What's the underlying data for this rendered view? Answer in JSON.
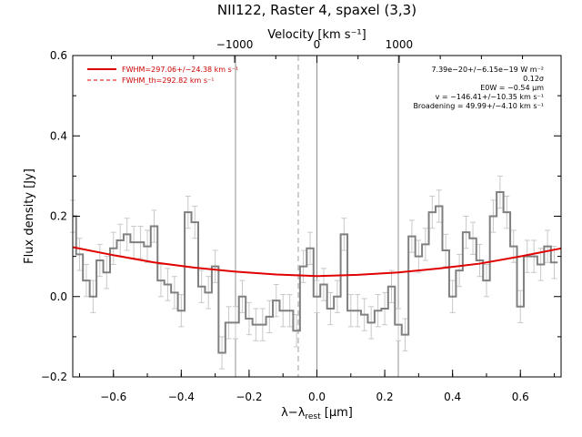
{
  "chart_data": {
    "type": "line",
    "title": "NII122, Raster 4, spaxel (3,3)",
    "xlabel_main": "λ−λ",
    "xlabel_sub": "rest",
    "xlabel_unit": " [μm]",
    "x2label": "Velocity [km s⁻¹]",
    "ylabel": "Flux density [Jy]",
    "xlim": [
      -0.72,
      0.72
    ],
    "ylim": [
      -0.2,
      0.6
    ],
    "xticks": [
      -0.6,
      -0.4,
      -0.2,
      0.0,
      0.2,
      0.4,
      0.6
    ],
    "xtick_labels": [
      "−0.6",
      "−0.4",
      "−0.2",
      "0.0",
      "0.2",
      "0.4",
      "0.6"
    ],
    "yticks": [
      -0.2,
      0.0,
      0.2,
      0.4,
      0.6
    ],
    "ytick_labels": [
      "−0.2",
      "0.0",
      "0.2",
      "0.4",
      "0.6"
    ],
    "vticks": [
      -1000,
      0,
      1000
    ],
    "vtick_labels": [
      "−1000",
      "0",
      "1000"
    ],
    "grid": false,
    "legend_position": "top-left",
    "legend": [
      {
        "label": "FWHM=297.06+/−24.38 km s⁻¹",
        "style": "solid",
        "color": "#e00000"
      },
      {
        "label": "FWHM_th=292.82 km s⁻¹",
        "style": "dashed",
        "color": "#e00000"
      }
    ],
    "annotations": [
      "7.39e−20+/−6.15e−19 W m⁻²",
      "0.12σ",
      "E0W = −0.54 μm",
      "v = −146.41+/−10.35 km s⁻¹",
      "Broadening = 49.99+/−4.10 km s⁻¹"
    ],
    "vertical_lines": {
      "solid": [
        -0.24,
        0.0,
        0.24
      ],
      "dashed": [
        -0.055
      ]
    },
    "fit_curve": {
      "color": "#e00000",
      "x": [
        -0.72,
        -0.6,
        -0.48,
        -0.36,
        -0.24,
        -0.12,
        0.0,
        0.12,
        0.24,
        0.36,
        0.48,
        0.6,
        0.72
      ],
      "y": [
        0.123,
        0.103,
        0.085,
        0.072,
        0.062,
        0.055,
        0.051,
        0.054,
        0.06,
        0.07,
        0.082,
        0.1,
        0.12
      ]
    },
    "series": [
      {
        "color": "#808080",
        "x": [
          -0.72,
          -0.7,
          -0.68,
          -0.66,
          -0.64,
          -0.62,
          -0.6,
          -0.58,
          -0.56,
          -0.54,
          -0.52,
          -0.5,
          -0.48,
          -0.46,
          -0.44,
          -0.42,
          -0.4,
          -0.38,
          -0.36,
          -0.34,
          -0.32,
          -0.3,
          -0.28,
          -0.26,
          -0.24,
          -0.22,
          -0.2,
          -0.18,
          -0.16,
          -0.14,
          -0.12,
          -0.1,
          -0.08,
          -0.06,
          -0.04,
          -0.02,
          0.0,
          0.02,
          0.04,
          0.06,
          0.08,
          0.1,
          0.12,
          0.14,
          0.16,
          0.18,
          0.2,
          0.22,
          0.24,
          0.26,
          0.28,
          0.3,
          0.32,
          0.34,
          0.36,
          0.38,
          0.4,
          0.42,
          0.44,
          0.46,
          0.48,
          0.5,
          0.52,
          0.54,
          0.56,
          0.58,
          0.6,
          0.62,
          0.64,
          0.66,
          0.68,
          0.7
        ],
        "y": [
          0.2,
          0.105,
          0.04,
          0.0,
          0.09,
          0.06,
          0.12,
          0.14,
          0.155,
          0.135,
          0.135,
          0.125,
          0.175,
          0.04,
          0.03,
          0.01,
          -0.035,
          0.21,
          0.185,
          0.025,
          0.01,
          0.075,
          -0.14,
          -0.065,
          -0.065,
          0.0,
          -0.055,
          -0.07,
          -0.07,
          -0.05,
          -0.01,
          -0.035,
          -0.035,
          -0.085,
          0.075,
          0.12,
          0.0,
          0.03,
          -0.03,
          0.0,
          0.155,
          -0.035,
          -0.035,
          -0.045,
          -0.065,
          -0.035,
          -0.03,
          0.025,
          -0.07,
          -0.095,
          0.15,
          0.1,
          0.13,
          0.21,
          0.225,
          0.115,
          0.0,
          0.065,
          0.16,
          0.145,
          0.09,
          0.04,
          0.2,
          0.26,
          0.21,
          0.125,
          -0.025,
          0.1,
          0.1,
          0.08,
          0.125,
          0.085
        ],
        "yerr": 0.04
      }
    ]
  }
}
